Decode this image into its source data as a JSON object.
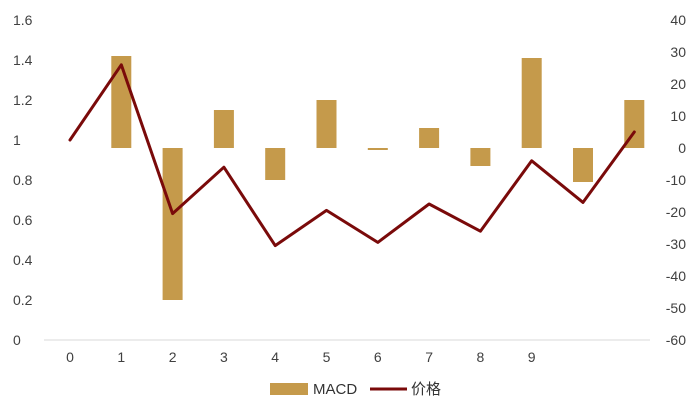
{
  "chart_data": {
    "type": "bar+line",
    "x_tick_labels": [
      "0",
      "1",
      "2",
      "3",
      "4",
      "5",
      "6",
      "7",
      "8",
      "9"
    ],
    "series": [
      {
        "name": "MACD",
        "type": "bar",
        "axis": "left",
        "baseline": 0.96,
        "x": [
          1,
          2,
          3,
          4,
          5,
          6,
          7,
          8,
          9,
          10,
          11
        ],
        "values": [
          1.42,
          0.2,
          1.15,
          0.8,
          1.2,
          0.95,
          1.06,
          0.87,
          1.41,
          0.79,
          1.2
        ],
        "color": "#C59A4B"
      },
      {
        "name": "价格",
        "type": "line",
        "axis": "right",
        "x": [
          0,
          1,
          2,
          3,
          4,
          5,
          6,
          7,
          8,
          9,
          10,
          11
        ],
        "values": [
          2.5,
          26,
          -20.5,
          -6,
          -30.5,
          -19.5,
          -29.5,
          -17.5,
          -26,
          -4,
          -17,
          5
        ],
        "color": "#7A0A0A"
      }
    ],
    "left_axis": {
      "ylim": [
        0,
        1.6
      ],
      "ticks": [
        "0",
        "0.2",
        "0.4",
        "0.6",
        "0.8",
        "1",
        "1.2",
        "1.4",
        "1.6"
      ]
    },
    "right_axis": {
      "ylim": [
        -60,
        40
      ],
      "ticks": [
        "-60",
        "-50",
        "-40",
        "-30",
        "-20",
        "-10",
        "0",
        "10",
        "20",
        "30",
        "40"
      ]
    },
    "grid": false,
    "legend_position": "bottom-center"
  }
}
